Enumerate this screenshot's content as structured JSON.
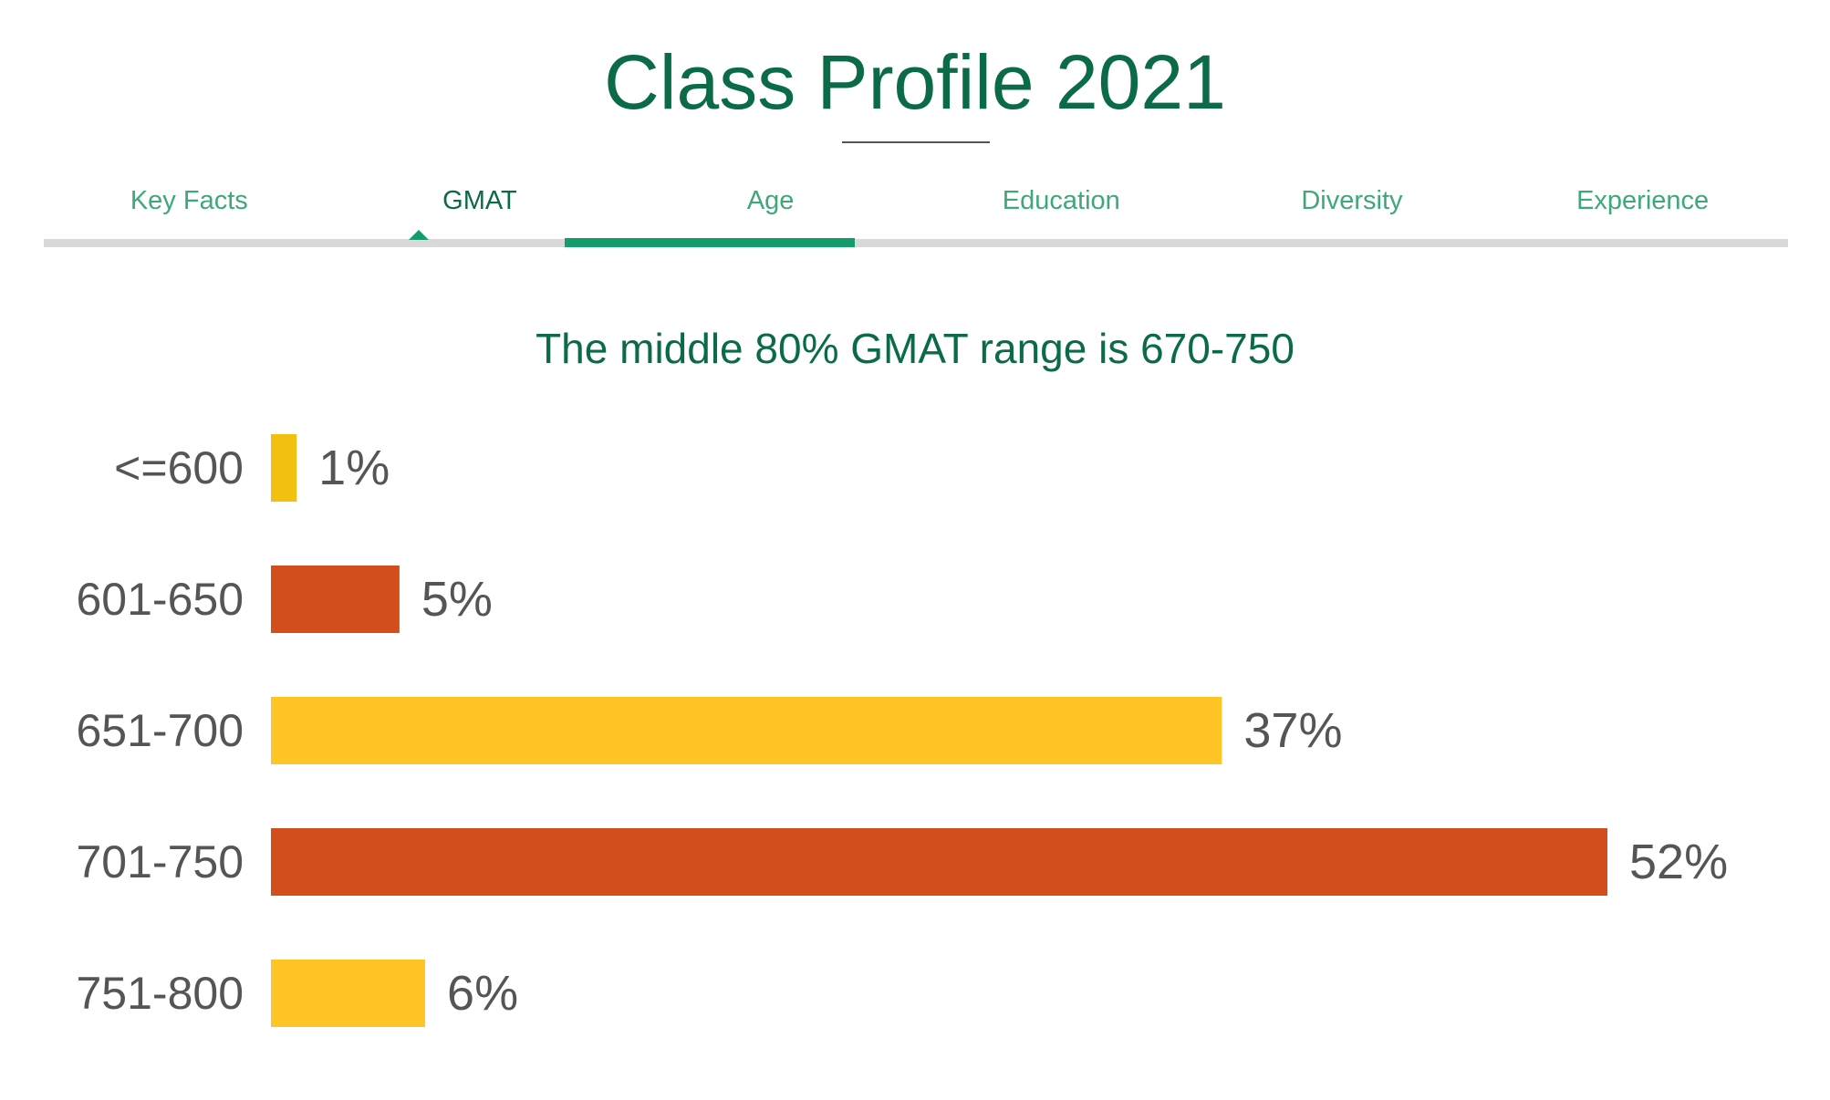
{
  "page": {
    "title": "Class Profile 2021"
  },
  "tabs": [
    {
      "label": "Key Facts",
      "active": false
    },
    {
      "label": "GMAT",
      "active": true
    },
    {
      "label": "Age",
      "active": false
    },
    {
      "label": "Education",
      "active": false
    },
    {
      "label": "Diversity",
      "active": false
    },
    {
      "label": "Experience",
      "active": false
    }
  ],
  "colors": {
    "accent": "#0b6b47",
    "tab_inactive": "#3fa878",
    "indicator": "#149c6b",
    "track": "#d9d9d9"
  },
  "chart_data": {
    "type": "bar",
    "orientation": "horizontal",
    "title": "The middle 80% GMAT range is 670-750",
    "categories": [
      "<=600",
      "601-650",
      "651-700",
      "701-750",
      "751-800"
    ],
    "values": [
      1,
      5,
      37,
      52,
      6
    ],
    "value_labels": [
      "1%",
      "5%",
      "37%",
      "52%",
      "6%"
    ],
    "unit": "%",
    "bar_colors": [
      "#f2c10f",
      "#d24e1c",
      "#ffc425",
      "#d24e1c",
      "#ffc425"
    ],
    "grid": false,
    "legend": "none",
    "xlim": [
      0,
      52
    ]
  }
}
